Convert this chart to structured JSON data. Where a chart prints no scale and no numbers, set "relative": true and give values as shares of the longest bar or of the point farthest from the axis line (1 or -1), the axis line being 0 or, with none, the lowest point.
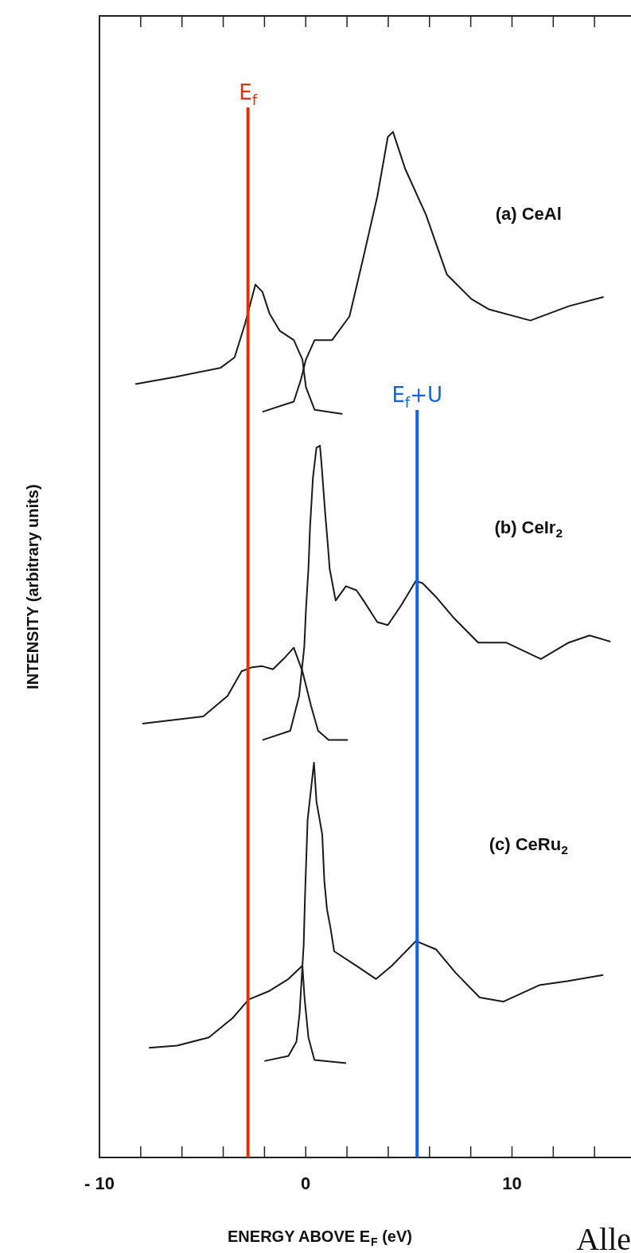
{
  "chart_data": {
    "type": "line",
    "relative": true,
    "xlabel": "ENERGY ABOVE E$_{F}$ (eV)",
    "ylabel": "INTENSITY (arbitrary units)",
    "xlim": [
      -10,
      16
    ],
    "xticks": [
      -10,
      {
        "value": -8,
        "label": null
      },
      {
        "value": -6,
        "label": null
      },
      {
        "value": -4,
        "label": null
      },
      {
        "value": -2,
        "label": null
      },
      0,
      {
        "value": 2,
        "label": null
      },
      {
        "value": 4,
        "label": null
      },
      {
        "value": 6,
        "label": null
      },
      {
        "value": 8,
        "label": null
      },
      10,
      {
        "value": 12,
        "label": null
      },
      {
        "value": 14,
        "label": null
      }
    ],
    "legend": false,
    "marker": "none",
    "line_style": "solid",
    "series": [
      {
        "color": "#1a1a1a",
        "x": [
          -8.26,
          -6.32,
          -4.12,
          -3.45,
          -2.94,
          -2.44,
          -2.1,
          -1.76,
          -1.26,
          -0.58,
          -0.16,
          0.01,
          0.43,
          1.78
        ],
        "values": [
          0.754,
          0.761,
          0.77,
          0.78,
          0.813,
          0.851,
          0.844,
          0.823,
          0.806,
          0.797,
          0.778,
          0.751,
          0.729,
          0.725
        ]
      },
      {
        "color": "#1a1a1a",
        "x": [
          -2.1,
          -0.58,
          -0.24,
          0.01,
          0.43,
          1.28,
          2.12,
          2.8,
          3.47,
          3.98,
          4.23,
          4.82,
          5.83,
          6.84,
          8.03,
          8.87,
          10.89,
          12.75,
          14.44
        ],
        "values": [
          0.727,
          0.737,
          0.758,
          0.778,
          0.797,
          0.797,
          0.82,
          0.878,
          0.937,
          0.995,
          1,
          0.964,
          0.919,
          0.861,
          0.837,
          0.827,
          0.816,
          0.83,
          0.839
        ]
      },
      {
        "color": "#1a1a1a",
        "x": [
          -7.92,
          -4.97,
          -3.79,
          -3.11,
          -2.6,
          -2.1,
          -1.59,
          -1.08,
          -0.58,
          -0.16,
          0.26,
          0.6,
          1.11,
          2.04
        ],
        "values": [
          0.423,
          0.43,
          0.45,
          0.474,
          0.478,
          0.479,
          0.476,
          0.486,
          0.497,
          0.474,
          0.44,
          0.416,
          0.407,
          0.407
        ]
      },
      {
        "color": "#1a1a1a",
        "x": [
          -2.1,
          -0.75,
          -0.32,
          -0.07,
          0.01,
          0.13,
          0.21,
          0.35,
          0.52,
          0.69,
          0.77,
          0.94,
          1.06,
          1.16,
          1.45,
          1.95,
          2.46,
          2.8,
          3.47,
          3.98,
          4.65,
          5.33,
          5.66,
          6.34,
          7.18,
          8.36,
          9.71,
          11.4,
          12.75,
          13.76,
          14.77
        ],
        "values": [
          0.407,
          0.416,
          0.45,
          0.498,
          0.534,
          0.574,
          0.615,
          0.663,
          0.692,
          0.694,
          0.675,
          0.629,
          0.6,
          0.574,
          0.543,
          0.557,
          0.553,
          0.543,
          0.522,
          0.519,
          0.539,
          0.562,
          0.56,
          0.546,
          0.526,
          0.502,
          0.502,
          0.486,
          0.502,
          0.509,
          0.503
        ]
      },
      {
        "color": "#1a1a1a",
        "x": [
          -7.6,
          -6.24,
          -4.7,
          -3.54,
          -2.77,
          -1.8,
          -0.84,
          -0.16,
          -0.06,
          0.13,
          0.42,
          1.96
        ],
        "values": [
          0.107,
          0.109,
          0.117,
          0.136,
          0.154,
          0.162,
          0.174,
          0.187,
          0.156,
          0.117,
          0.095,
          0.092
        ]
      },
      {
        "color": "#1a1a1a",
        "x": [
          -2,
          -0.84,
          -0.45,
          -0.3,
          -0.1,
          -0.03,
          0.09,
          0.4,
          0.52,
          0.8,
          0.9,
          1.03,
          1.19,
          1.38,
          2.45,
          3.41,
          4.18,
          5.34,
          6.31,
          7.27,
          8.43,
          9.59,
          11.32,
          12.68,
          14.42
        ],
        "values": [
          0.094,
          0.099,
          0.113,
          0.14,
          0.207,
          0.258,
          0.329,
          0.385,
          0.347,
          0.315,
          0.27,
          0.242,
          0.225,
          0.201,
          0.187,
          0.174,
          0.187,
          0.211,
          0.203,
          0.18,
          0.156,
          0.152,
          0.168,
          0.172,
          0.178
        ]
      }
    ],
    "ref_lines": [
      {
        "axis": "x",
        "value": -2.8,
        "label": "E$_{f}$",
        "color": "#e0300f"
      },
      {
        "axis": "x",
        "value": 5.4,
        "label": "E$_{f}$+U",
        "color": "#0a64f0"
      }
    ],
    "annotations": [
      "(a) CeAl",
      "(b) CeIr$_{2}$",
      "(c) CeRu$_{2}$",
      "Alle"
    ]
  }
}
